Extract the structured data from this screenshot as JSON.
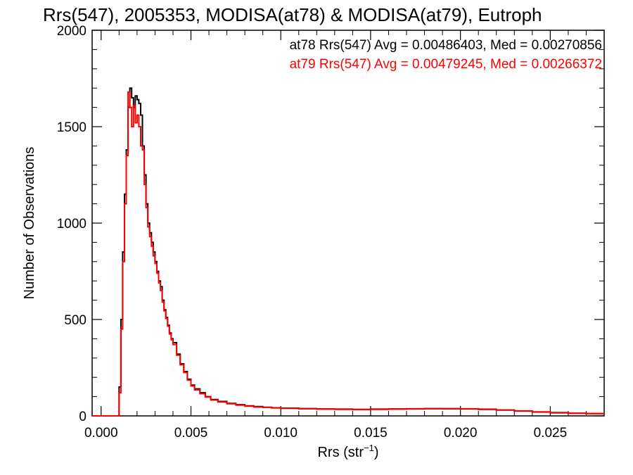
{
  "chart_data": {
    "type": "line",
    "title": "Rrs(547), 2005353, MODISA(at78) & MODISA(at79), Eutroph",
    "xlabel_main": "Rrs (str",
    "xlabel_exp": "−1",
    "xlabel_close": ")",
    "ylabel": "Number of Observations",
    "xlim": [
      -0.0005,
      0.028
    ],
    "ylim": [
      0,
      2000
    ],
    "x_ticks": [
      0.0,
      0.005,
      0.01,
      0.015,
      0.02,
      0.025
    ],
    "x_tick_labels": [
      "0.000",
      "0.005",
      "0.010",
      "0.015",
      "0.020",
      "0.025"
    ],
    "y_ticks": [
      0,
      500,
      1000,
      1500,
      2000
    ],
    "y_tick_labels": [
      "0",
      "500",
      "1000",
      "1500",
      "2000"
    ],
    "annotations": [
      "at78 Rrs(547) Avg = 0.00486403, Med = 0.00270856",
      "at79 Rrs(547) Avg = 0.00479245, Med = 0.00266372"
    ],
    "series": [
      {
        "color": "#000000",
        "x": [
          -0.0005,
          0.0009,
          0.001,
          0.0011,
          0.0012,
          0.0013,
          0.0014,
          0.0015,
          0.0016,
          0.0017,
          0.0018,
          0.0019,
          0.002,
          0.0021,
          0.0022,
          0.0023,
          0.0024,
          0.0025,
          0.0026,
          0.0027,
          0.0028,
          0.0029,
          0.003,
          0.0031,
          0.0032,
          0.0033,
          0.0034,
          0.0035,
          0.0036,
          0.0037,
          0.0038,
          0.0039,
          0.004,
          0.0042,
          0.0044,
          0.0046,
          0.0048,
          0.005,
          0.0052,
          0.0055,
          0.0058,
          0.0061,
          0.0065,
          0.007,
          0.0075,
          0.008,
          0.0085,
          0.009,
          0.0095,
          0.01,
          0.011,
          0.012,
          0.013,
          0.014,
          0.015,
          0.016,
          0.017,
          0.018,
          0.019,
          0.02,
          0.021,
          0.022,
          0.023,
          0.024,
          0.025,
          0.026,
          0.027,
          0.028
        ],
        "y": [
          0,
          0,
          150,
          500,
          850,
          1150,
          1380,
          1600,
          1700,
          1650,
          1600,
          1660,
          1640,
          1620,
          1560,
          1400,
          1250,
          1100,
          1000,
          950,
          900,
          850,
          800,
          750,
          700,
          670,
          600,
          550,
          510,
          470,
          430,
          400,
          380,
          320,
          270,
          230,
          190,
          160,
          140,
          120,
          100,
          85,
          75,
          65,
          58,
          52,
          48,
          45,
          42,
          40,
          38,
          36,
          35,
          34,
          35,
          36,
          37,
          38,
          37,
          36,
          34,
          30,
          25,
          20,
          16,
          14,
          12,
          10
        ]
      },
      {
        "color": "#ff0000",
        "x": [
          -0.0005,
          0.0009,
          0.001,
          0.0011,
          0.0012,
          0.0013,
          0.0014,
          0.0015,
          0.0016,
          0.0017,
          0.0018,
          0.0019,
          0.002,
          0.0021,
          0.0022,
          0.0023,
          0.0024,
          0.0025,
          0.0026,
          0.0027,
          0.0028,
          0.0029,
          0.003,
          0.0031,
          0.0032,
          0.0033,
          0.0034,
          0.0035,
          0.0036,
          0.0037,
          0.0038,
          0.0039,
          0.004,
          0.0042,
          0.0044,
          0.0046,
          0.0048,
          0.005,
          0.0052,
          0.0055,
          0.0058,
          0.0061,
          0.0065,
          0.007,
          0.0075,
          0.008,
          0.0085,
          0.009,
          0.0095,
          0.01,
          0.011,
          0.012,
          0.013,
          0.014,
          0.015,
          0.016,
          0.017,
          0.018,
          0.019,
          0.02,
          0.021,
          0.022,
          0.023,
          0.024,
          0.025,
          0.026,
          0.027,
          0.028
        ],
        "y": [
          0,
          0,
          120,
          450,
          800,
          1100,
          1350,
          1680,
          1600,
          1500,
          1610,
          1520,
          1560,
          1500,
          1400,
          1380,
          1200,
          1080,
          980,
          930,
          880,
          830,
          790,
          740,
          690,
          650,
          590,
          545,
          505,
          465,
          425,
          395,
          370,
          315,
          265,
          225,
          185,
          155,
          135,
          115,
          98,
          82,
          72,
          63,
          56,
          50,
          46,
          44,
          41,
          39,
          37,
          35,
          34,
          33,
          34,
          35,
          36,
          37,
          38,
          37,
          35,
          31,
          26,
          21,
          17,
          14,
          12,
          10
        ]
      }
    ]
  }
}
